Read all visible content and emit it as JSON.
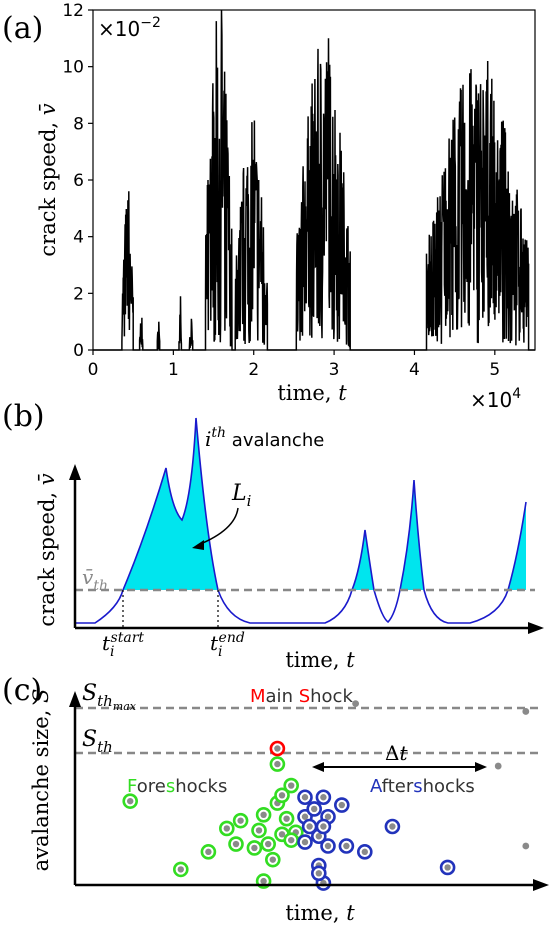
{
  "panel_a": {
    "label": "(a)",
    "chart_data": {
      "type": "line",
      "xlabel": "time, t",
      "ylabel": "crack speed, v̄",
      "x_multiplier": "×10^4",
      "y_multiplier": "×10^-2",
      "xlim": [
        0,
        5.5
      ],
      "ylim": [
        0,
        12
      ],
      "x_ticks": [
        "0",
        "1",
        "2",
        "3",
        "4",
        "5"
      ],
      "y_ticks": [
        "0",
        "2",
        "4",
        "6",
        "8",
        "10",
        "12"
      ],
      "bursts": [
        {
          "start": 0.36,
          "end": 0.5,
          "peak": 5.6
        },
        {
          "start": 0.58,
          "end": 0.62,
          "peak": 1.3
        },
        {
          "start": 0.8,
          "end": 0.83,
          "peak": 1.0
        },
        {
          "start": 1.07,
          "end": 1.1,
          "peak": 1.9
        },
        {
          "start": 1.2,
          "end": 1.24,
          "peak": 1.1
        },
        {
          "start": 1.4,
          "end": 1.73,
          "peak": 12.0
        },
        {
          "start": 1.77,
          "end": 2.17,
          "peak": 8.1
        },
        {
          "start": 2.53,
          "end": 3.2,
          "peak": 11.0
        },
        {
          "start": 4.15,
          "end": 5.42,
          "peak": 10.2
        }
      ]
    }
  },
  "panel_b": {
    "label": "(b)",
    "ylabel": "crack speed, v̄",
    "xlabel": "time, t",
    "threshold_label": "v̄th",
    "avalanche_label": "i^th avalanche",
    "area_label": "Li",
    "t_start_label": "ti^start",
    "t_end_label": "ti^end",
    "fill_color": "#00e5ee",
    "curve_color": "#1a1acc"
  },
  "panel_c": {
    "label": "(c)",
    "ylabel": "avalanche size, S",
    "xlabel": "time, t",
    "s_max_label": "Sth_max",
    "s_th_label": "Sth",
    "main_shock": {
      "first_letter": "M",
      "rest1": "ain ",
      "second_letter": "S",
      "rest2": "hock",
      "color": "#ff0000"
    },
    "foreshocks": {
      "first_letter": "F",
      "rest1": "ore",
      "second_letter": "s",
      "rest2": "hocks",
      "color": "#33dd22"
    },
    "aftershocks": {
      "first_letter": "A",
      "rest1": "fter",
      "second_letter": "s",
      "rest2": "hocks",
      "color": "#2233bb"
    },
    "delta_t": "Δt",
    "foreshock_points": [
      {
        "t": 0.12,
        "s": 0.43
      },
      {
        "t": 0.44,
        "s": 0.42
      },
      {
        "t": 0.46,
        "s": 0.34
      },
      {
        "t": 0.45,
        "s": 0.26
      },
      {
        "t": 0.42,
        "s": 0.21
      },
      {
        "t": 0.39,
        "s": 0.19
      },
      {
        "t": 0.4,
        "s": 0.28
      },
      {
        "t": 0.35,
        "s": 0.21
      },
      {
        "t": 0.33,
        "s": 0.29
      },
      {
        "t": 0.36,
        "s": 0.33
      },
      {
        "t": 0.41,
        "s": 0.36
      },
      {
        "t": 0.48,
        "s": 0.27
      },
      {
        "t": 0.47,
        "s": 0.23
      },
      {
        "t": 0.45,
        "s": 0.46
      },
      {
        "t": 0.47,
        "s": 0.51
      },
      {
        "t": 0.44,
        "s": 0.62
      },
      {
        "t": 0.43,
        "s": 0.13
      },
      {
        "t": 0.29,
        "s": 0.17
      },
      {
        "t": 0.23,
        "s": 0.08
      },
      {
        "t": 0.41,
        "s": 0.02
      }
    ],
    "aftershock_points": [
      {
        "t": 0.5,
        "s": 0.45
      },
      {
        "t": 0.5,
        "s": 0.35
      },
      {
        "t": 0.52,
        "s": 0.39
      },
      {
        "t": 0.51,
        "s": 0.3
      },
      {
        "t": 0.53,
        "s": 0.25
      },
      {
        "t": 0.54,
        "s": 0.45
      },
      {
        "t": 0.55,
        "s": 0.35
      },
      {
        "t": 0.54,
        "s": 0.3
      },
      {
        "t": 0.5,
        "s": 0.22
      },
      {
        "t": 0.55,
        "s": 0.2
      },
      {
        "t": 0.58,
        "s": 0.41
      },
      {
        "t": 0.59,
        "s": 0.2
      },
      {
        "t": 0.53,
        "s": 0.1
      },
      {
        "t": 0.54,
        "s": 0.01
      },
      {
        "t": 0.63,
        "s": 0.17
      },
      {
        "t": 0.69,
        "s": 0.3
      },
      {
        "t": 0.81,
        "s": 0.09
      },
      {
        "t": 0.53,
        "s": 0.06
      }
    ],
    "main_shock_point": {
      "t": 0.44,
      "s": 0.7
    },
    "grey_points": [
      {
        "t": 0.61,
        "s": 0.93
      },
      {
        "t": 0.92,
        "s": 0.61
      },
      {
        "t": 0.98,
        "s": 0.89
      },
      {
        "t": 0.98,
        "s": 0.2
      }
    ]
  }
}
